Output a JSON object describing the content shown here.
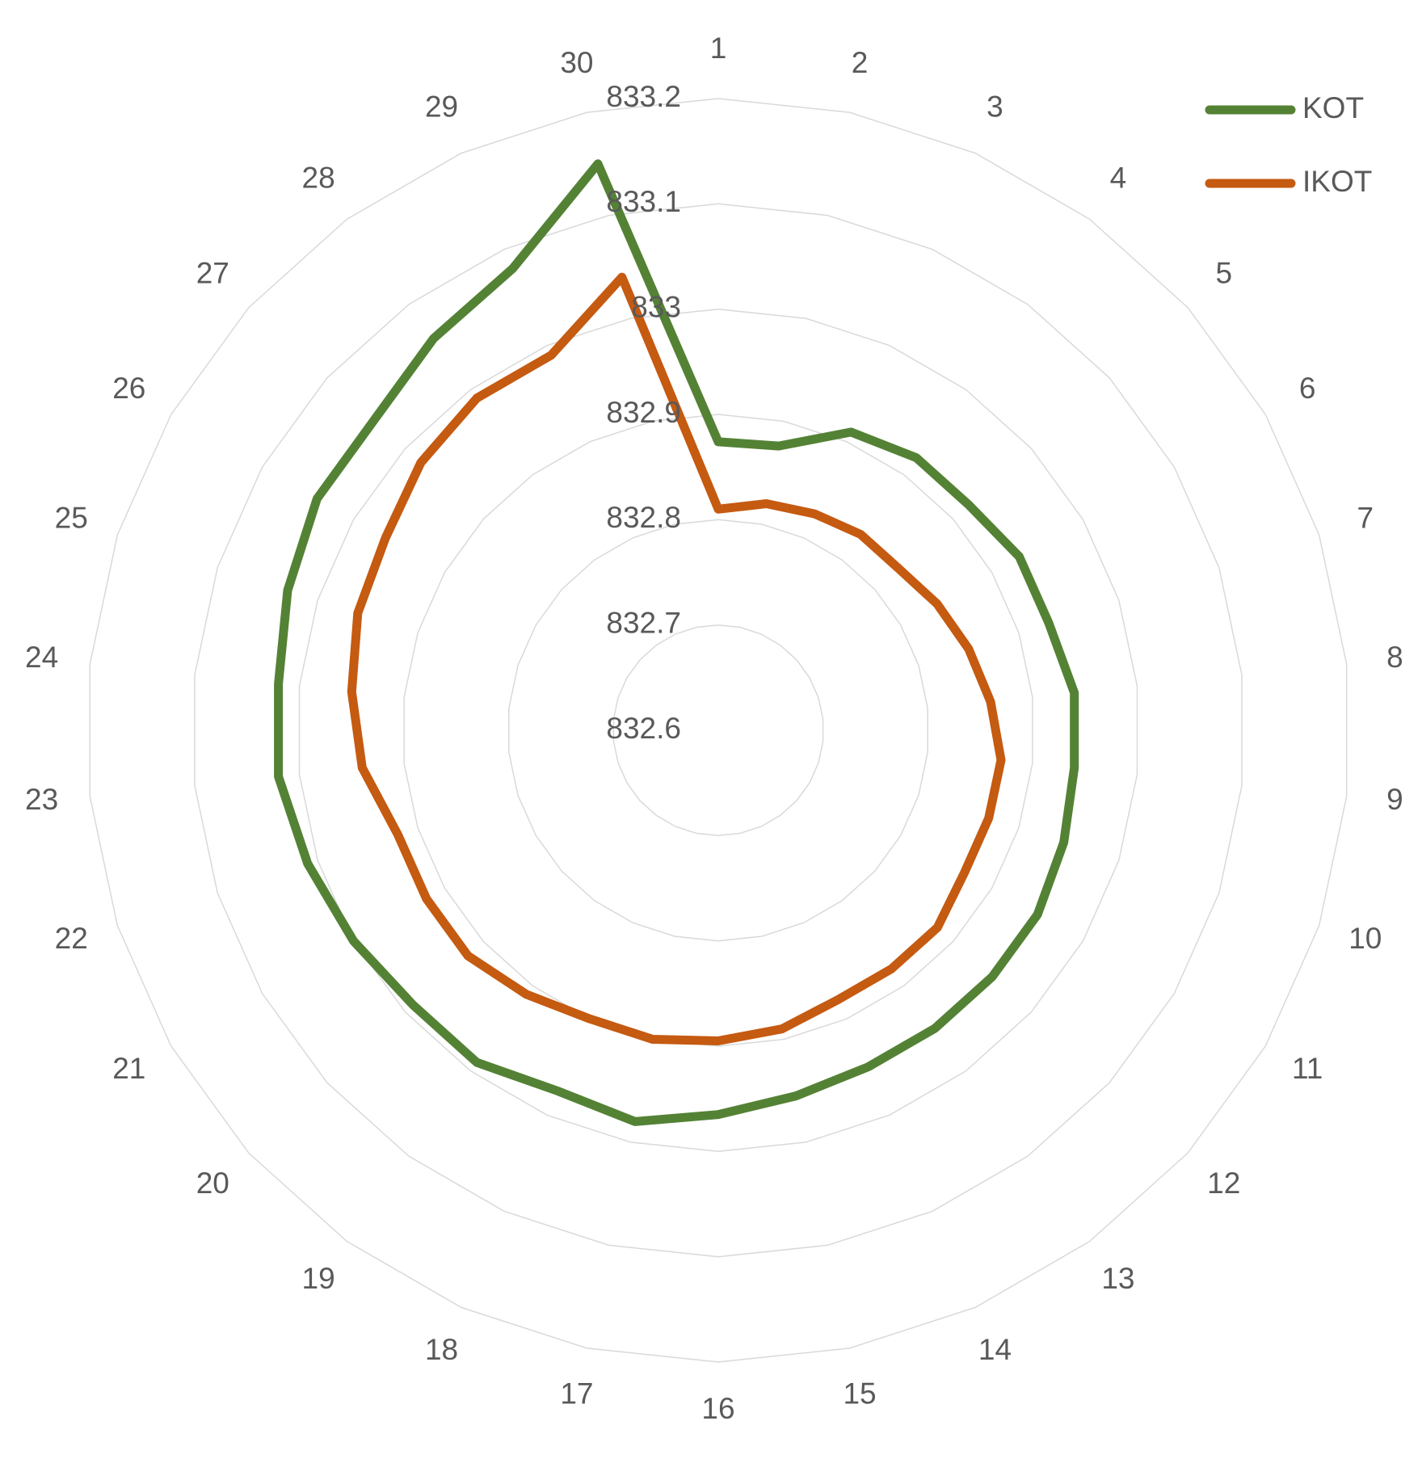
{
  "chart_data": {
    "type": "radar",
    "categories": [
      "1",
      "2",
      "3",
      "4",
      "5",
      "6",
      "7",
      "8",
      "9",
      "10",
      "11",
      "12",
      "13",
      "14",
      "15",
      "16",
      "17",
      "18",
      "19",
      "20",
      "21",
      "22",
      "23",
      "24",
      "25",
      "26",
      "27",
      "28",
      "29",
      "30"
    ],
    "ylim": [
      832.6,
      833.2
    ],
    "yticks": [
      832.6,
      832.7,
      832.8,
      832.9,
      833,
      833.1,
      833.2
    ],
    "grid": true,
    "legend": "top-right",
    "series": [
      {
        "name": "KOT",
        "color": "#548235",
        "values": [
          832.874,
          832.876,
          832.91,
          832.92,
          832.92,
          832.93,
          832.93,
          832.94,
          832.94,
          832.945,
          832.95,
          832.95,
          832.95,
          832.95,
          832.955,
          832.965,
          832.98,
          832.975,
          832.99,
          832.99,
          833.0,
          833.01,
          833.02,
          833.02,
          833.03,
          833.04,
          833.04,
          833.06,
          833.08,
          833.15
        ]
      },
      {
        "name": "IKOT",
        "color": "#c55a11",
        "values": [
          832.81,
          832.82,
          832.825,
          832.83,
          832.83,
          832.84,
          832.85,
          832.86,
          832.87,
          832.87,
          832.87,
          832.88,
          832.88,
          832.88,
          832.89,
          832.895,
          832.9,
          832.9,
          832.91,
          832.92,
          832.92,
          832.92,
          832.94,
          832.95,
          832.96,
          832.965,
          832.98,
          832.99,
          832.99,
          833.04
        ]
      }
    ]
  }
}
